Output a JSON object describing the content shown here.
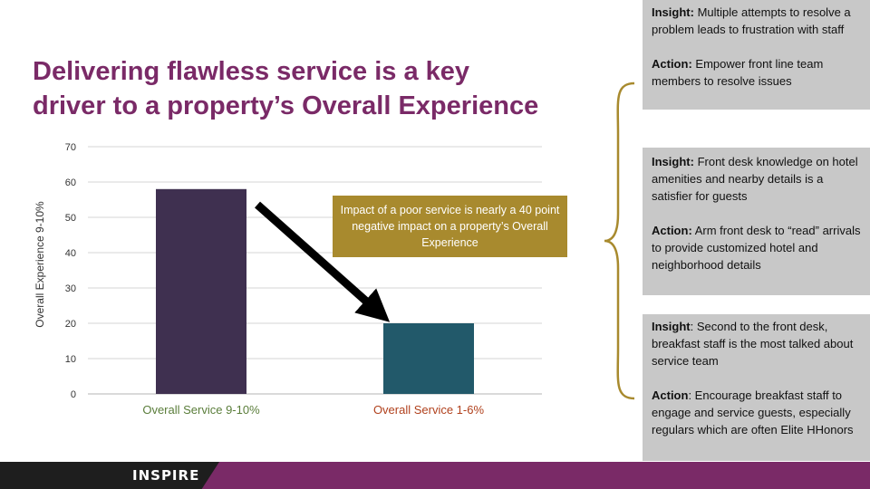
{
  "slide": {
    "title_line1": "Delivering flawless service is a key",
    "title_line2": "driver to a property’s Overall Experience",
    "callout": "Impact of a poor service is nearly a 40 point negative impact on a property’s Overall Experience",
    "logo": "INSPIRE"
  },
  "insights": [
    {
      "insight_label": "Insight:",
      "insight_text": "Multiple attempts to resolve a problem leads to frustration with staff",
      "action_label": "Action:",
      "action_text": "Empower front line team members to resolve issues"
    },
    {
      "insight_label": "Insight:",
      "insight_text": "Front desk knowledge on hotel amenities and nearby details is a satisfier for guests",
      "action_label": "Action:",
      "action_text": "Arm front desk to “read” arrivals to provide customized hotel and neighborhood details"
    },
    {
      "insight_label": "Insight",
      "insight_text": ": Second to the front desk, breakfast staff is the most talked about service team",
      "action_label": "Action",
      "action_text": ": Encourage breakfast staff to engage and service guests, especially regulars which are often Elite HHonors"
    }
  ],
  "chart_data": {
    "type": "bar",
    "categories": [
      "Overall Service 9-10%",
      "Overall Service 1-6%"
    ],
    "values": [
      58,
      20
    ],
    "bar_colors": [
      "#3f3050",
      "#22596a"
    ],
    "category_label_color": "#5a7d3a",
    "category_label_color_2": "#b0401c",
    "ylabel": "Overall Experience 9-10%",
    "ylim": [
      0,
      70
    ],
    "yticks": [
      0,
      10,
      20,
      30,
      40,
      50,
      60,
      70
    ],
    "grid": true
  }
}
